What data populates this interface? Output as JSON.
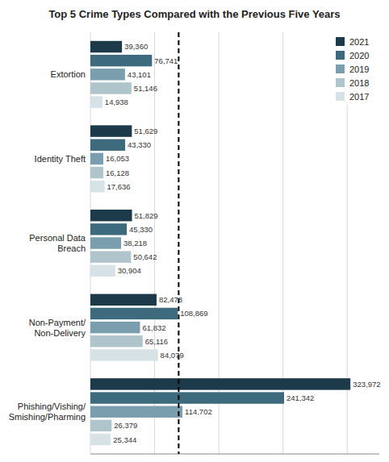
{
  "chart_data": {
    "type": "bar",
    "orientation": "horizontal",
    "title": "Top 5 Crime Types Compared with the Previous Five Years",
    "categories": [
      "Extortion",
      "Identity Theft",
      "Personal Data\nBreach",
      "Non-Payment/\nNon-Delivery",
      "Phishing/Vishing/\nSmishing/Pharming"
    ],
    "series": [
      {
        "name": "2021",
        "color": "#1c3a4a",
        "values": [
          39360,
          51629,
          51829,
          82478,
          323972
        ],
        "value_labels": [
          "39,360",
          "51,629",
          "51,829",
          "82,478",
          "323,972"
        ]
      },
      {
        "name": "2020",
        "color": "#3d6b7d",
        "values": [
          76741,
          43330,
          45330,
          108869,
          241342
        ],
        "value_labels": [
          "76,741",
          "43,330",
          "45,330",
          "108,869",
          "241,342"
        ]
      },
      {
        "name": "2019",
        "color": "#7a9eae",
        "values": [
          43101,
          16053,
          38218,
          61832,
          114702
        ],
        "value_labels": [
          "43,101",
          "16,053",
          "38,218",
          "61,832",
          "114,702"
        ]
      },
      {
        "name": "2018",
        "color": "#b0c4cc",
        "values": [
          51146,
          16128,
          50642,
          65116,
          26379
        ],
        "value_labels": [
          "51,146",
          "16,128",
          "50,642",
          "65,116",
          "26,379"
        ]
      },
      {
        "name": "2017",
        "color": "#d6e2e6",
        "values": [
          14938,
          17636,
          30904,
          84079,
          25344
        ],
        "value_labels": [
          "14,938",
          "17,636",
          "30,904",
          "84,079",
          "25,344"
        ]
      }
    ],
    "xlim": [
      0,
      360000
    ],
    "xticks": [
      0,
      80000,
      160000,
      240000,
      320000
    ],
    "vlines": [
      110000
    ],
    "grid": true,
    "tick_labels": "y",
    "data_labels": true,
    "legend": "upper right"
  }
}
